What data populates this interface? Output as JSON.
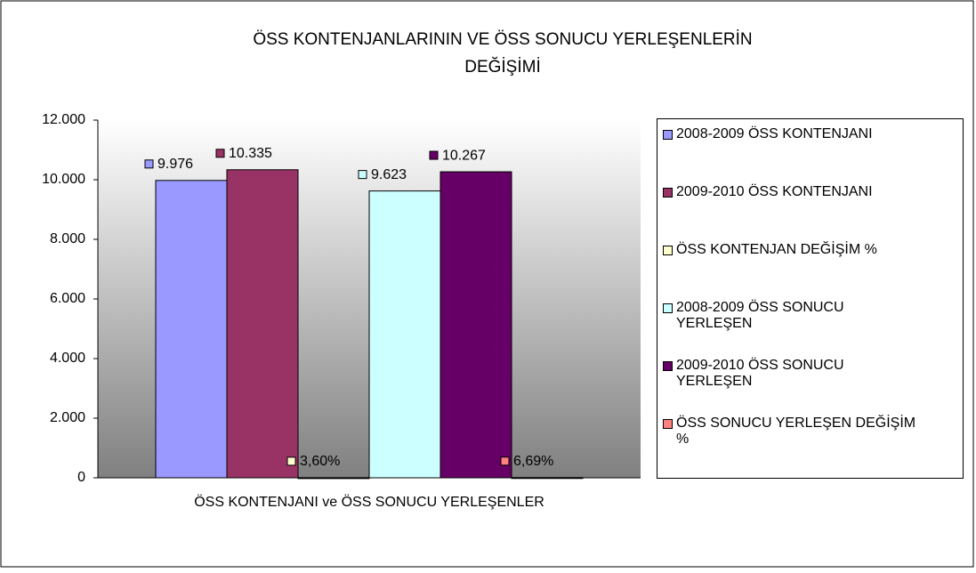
{
  "chart_data": {
    "type": "bar",
    "title": "ÖSS KONTENJANLARININ VE ÖSS SONUCU YERLEŞENLERİN DEĞİŞİMİ",
    "categories": [
      "ÖSS KONTENJANI ve ÖSS SONUCU YERLEŞENLER"
    ],
    "series": [
      {
        "name": "2008-2009 ÖSS KONTENJANI",
        "color": "#9999FF",
        "values": [
          9976
        ],
        "value_labels": [
          "9.976"
        ]
      },
      {
        "name": "2009-2010 ÖSS KONTENJANI",
        "color": "#993366",
        "values": [
          10335
        ],
        "value_labels": [
          "10.335"
        ]
      },
      {
        "name": "ÖSS KONTENJAN DEĞİŞİM %",
        "color": "#FFFFCC",
        "values": [
          3.6
        ],
        "value_labels": [
          "3,60%"
        ]
      },
      {
        "name": "2008-2009 ÖSS SONUCU YERLEŞEN",
        "color": "#CCFFFF",
        "values": [
          9623
        ],
        "value_labels": [
          "9.623"
        ]
      },
      {
        "name": "2009-2010 ÖSS SONUCU YERLEŞEN",
        "color": "#660066",
        "values": [
          10267
        ],
        "value_labels": [
          "10.267"
        ]
      },
      {
        "name": "ÖSS SONUCU YERLEŞEN DEĞİŞİM %",
        "color": "#FF8080",
        "values": [
          6.69
        ],
        "value_labels": [
          "6,69%"
        ]
      }
    ],
    "ylim": [
      0,
      12000
    ],
    "yticks": [
      0,
      {
        "value": 2000,
        "label": "2.000"
      },
      {
        "value": 4000,
        "label": "4.000"
      },
      {
        "value": 6000,
        "label": "6.000"
      },
      {
        "value": 8000,
        "label": "8.000"
      },
      {
        "value": 10000,
        "label": "10.000"
      },
      {
        "value": 12000,
        "label": "12.000"
      }
    ],
    "legend": "right"
  }
}
